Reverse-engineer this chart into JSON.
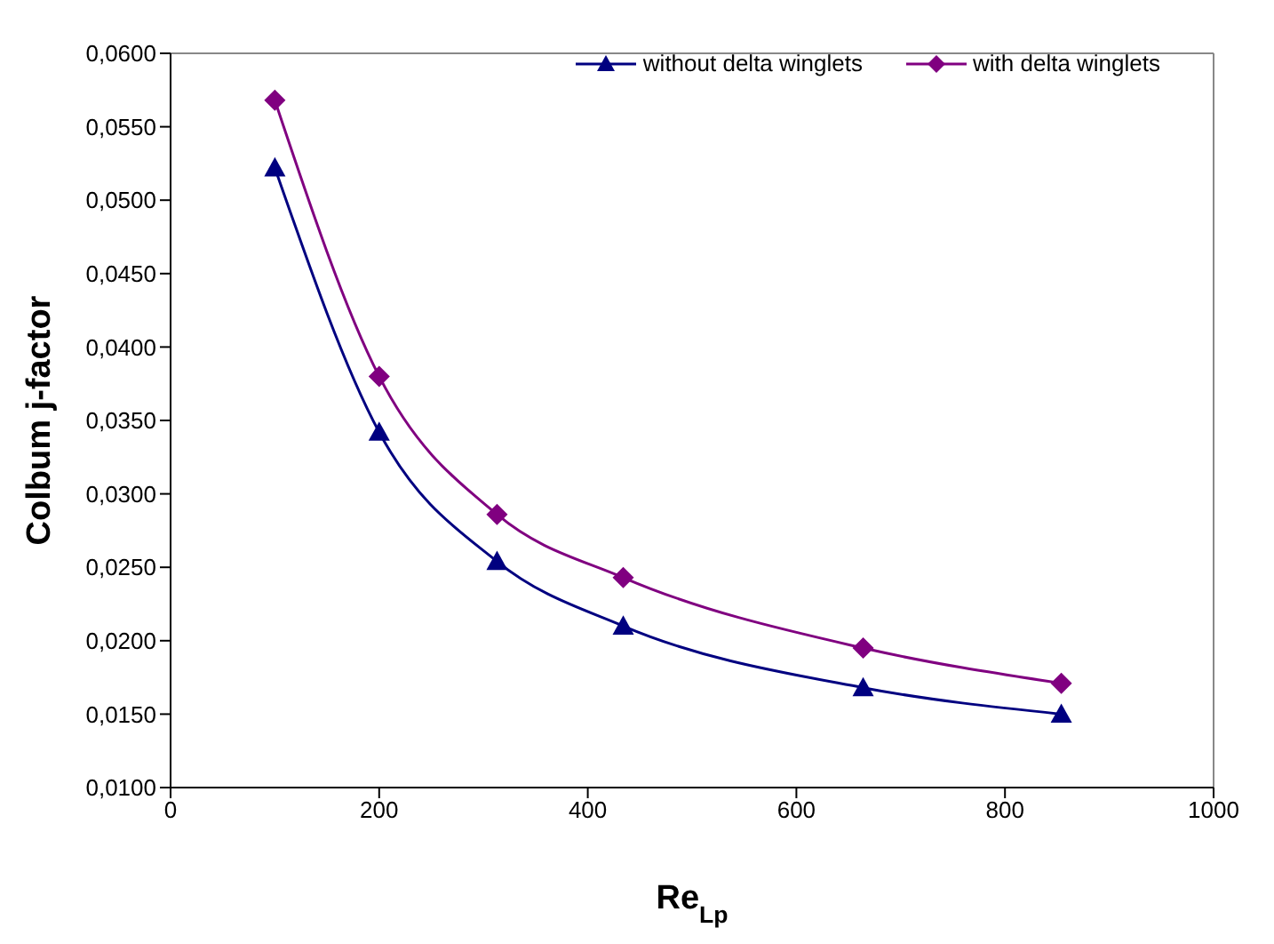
{
  "chart_data": {
    "type": "line",
    "xlabel": "Re$_{Lp}$",
    "ylabel": "Colbum j-factor",
    "x": [
      100,
      200,
      313,
      434,
      664,
      854
    ],
    "series": [
      {
        "name": "without delta winglets",
        "color": "#000080",
        "marker": "triangle",
        "values": [
          0.0522,
          0.0342,
          0.0254,
          0.021,
          0.0168,
          0.015
        ]
      },
      {
        "name": "with delta winglets",
        "color": "#800080",
        "marker": "diamond",
        "values": [
          0.0568,
          0.038,
          0.0286,
          0.0243,
          0.0195,
          0.0171
        ]
      }
    ],
    "xlim": [
      0,
      1000
    ],
    "xticks": [
      0,
      200,
      400,
      600,
      800,
      1000
    ],
    "ylim": [
      0.01,
      0.06
    ],
    "yticks": [
      {
        "value": 0.01,
        "label": "0,0100"
      },
      {
        "value": 0.015,
        "label": "0,0150"
      },
      {
        "value": 0.02,
        "label": "0,0200"
      },
      {
        "value": 0.025,
        "label": "0,0250"
      },
      {
        "value": 0.03,
        "label": "0,0300"
      },
      {
        "value": 0.035,
        "label": "0,0350"
      },
      {
        "value": 0.04,
        "label": "0,0400"
      },
      {
        "value": 0.045,
        "label": "0,0450"
      },
      {
        "value": 0.05,
        "label": "0,0500"
      },
      {
        "value": 0.055,
        "label": "0,0550"
      },
      {
        "value": 0.06,
        "label": "0,0600"
      }
    ],
    "grid": false,
    "legend": "top right",
    "line_style": "solid"
  }
}
